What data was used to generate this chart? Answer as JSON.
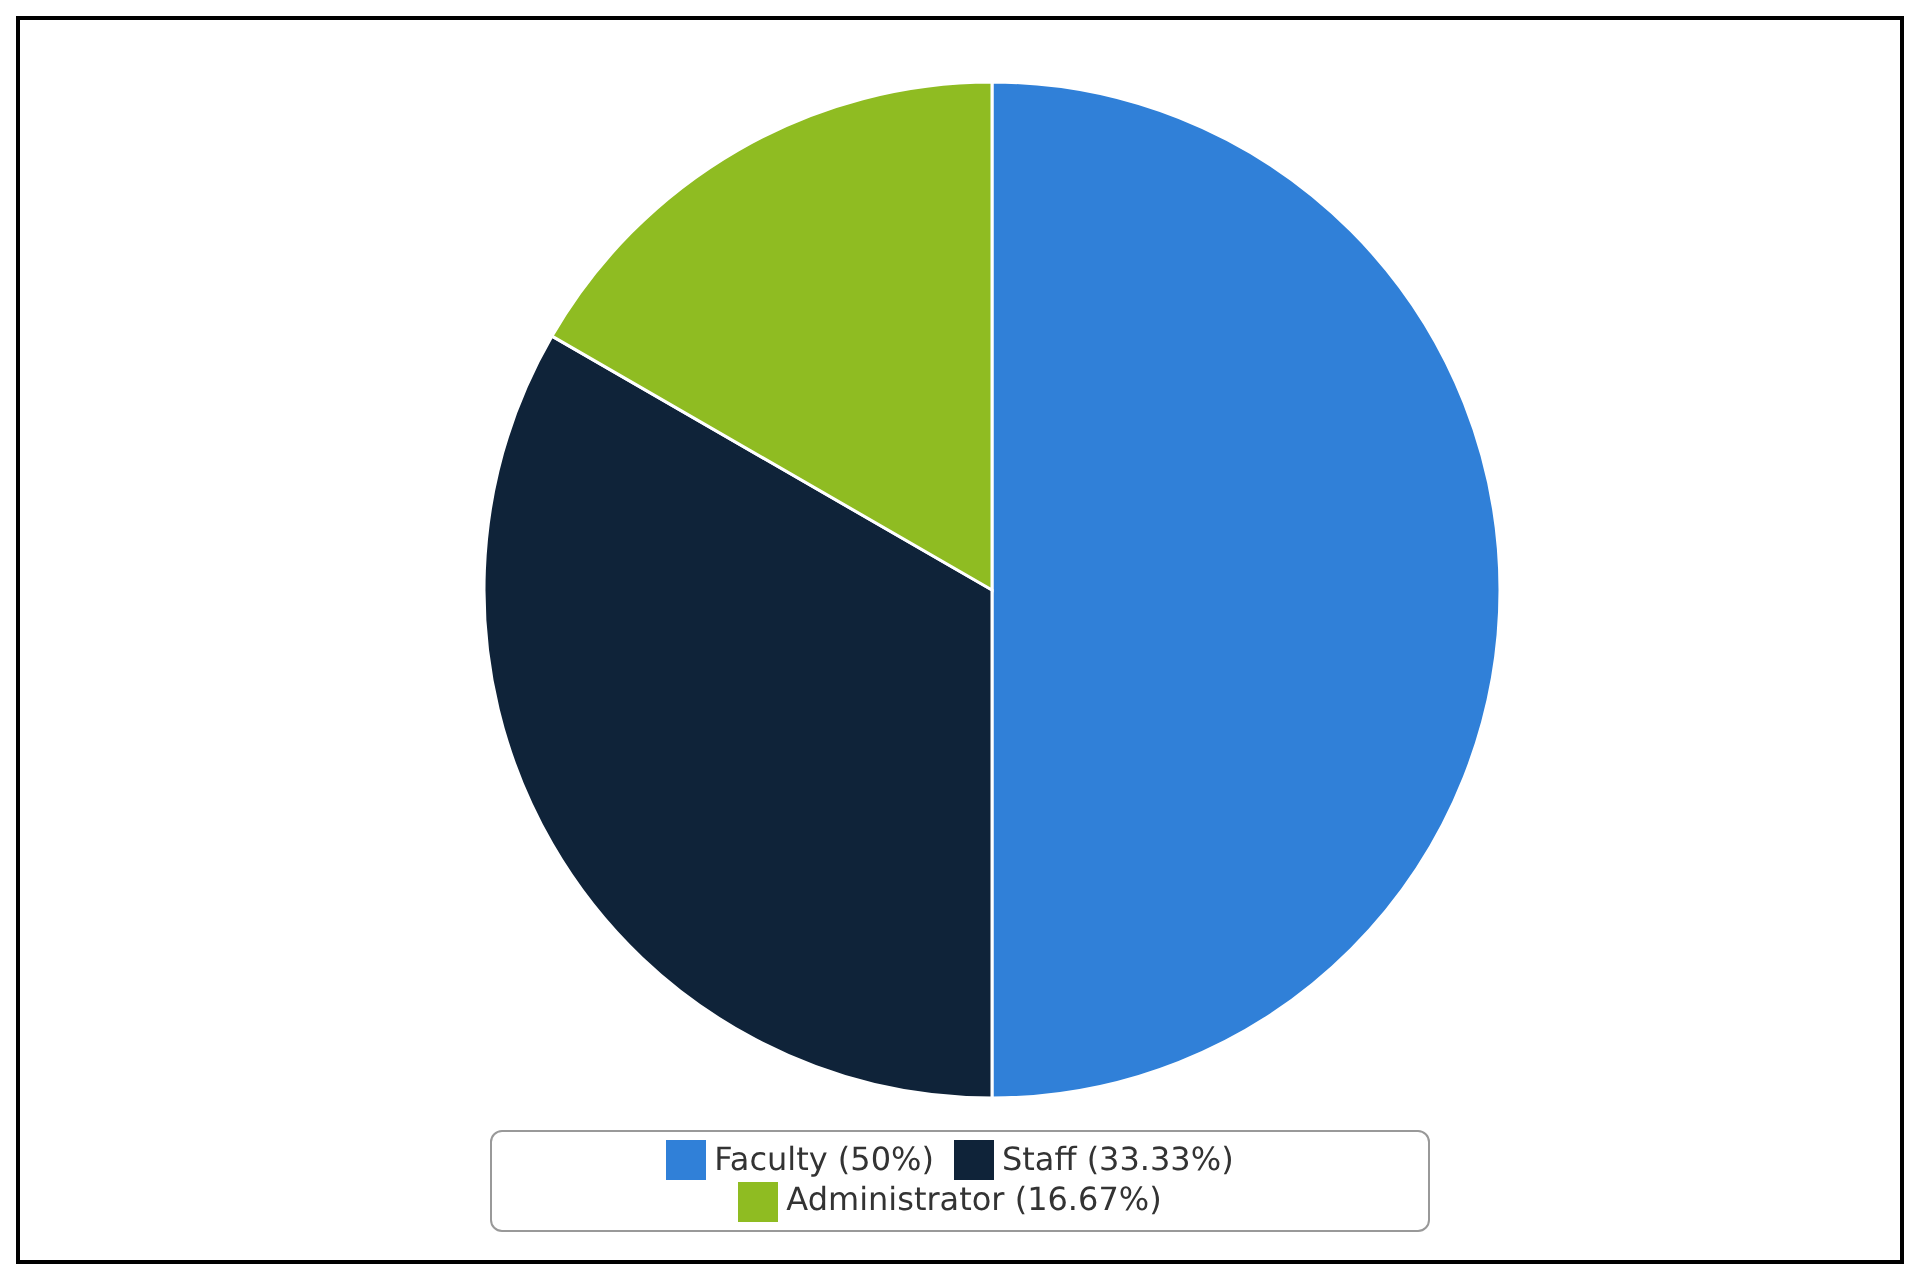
{
  "chart_data": {
    "type": "pie",
    "categories": [
      "Faculty (50%)",
      "Staff (33.33%)",
      "Administrator (16.67%)"
    ],
    "values": [
      50,
      33.33,
      16.67
    ],
    "colors": [
      "#3080d8",
      "#0f2339",
      "#8fbc22"
    ],
    "legend": "bottom"
  }
}
